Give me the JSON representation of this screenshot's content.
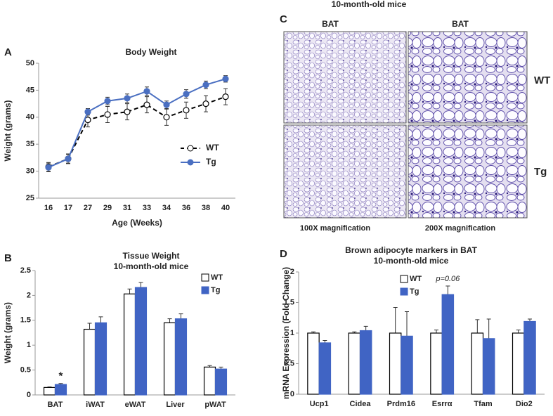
{
  "chart_data": [
    {
      "type": "line",
      "panel": "A",
      "title": "Body Weight",
      "x_label": "Age (Weeks)",
      "y_label": "Weight (grams)",
      "categories": [
        "16",
        "17",
        "27",
        "29",
        "31",
        "33",
        "34",
        "36",
        "38",
        "40"
      ],
      "ylim": [
        25,
        50
      ],
      "yticks": [
        25,
        30,
        35,
        40,
        45,
        50
      ],
      "legend": "center right",
      "series": [
        {
          "name": "WT",
          "color": "#000000",
          "values": [
            30.8,
            32.3,
            39.5,
            40.5,
            41,
            42.3,
            40,
            41.3,
            42.5,
            43.8
          ],
          "errors": [
            0.8,
            0.9,
            1.3,
            1.5,
            1.5,
            1.5,
            1.5,
            1.5,
            1.5,
            1.5
          ]
        },
        {
          "name": "Tg",
          "color": "#4a6fc1",
          "values": [
            30.7,
            32.3,
            41,
            43,
            43.5,
            44.8,
            42.3,
            44.3,
            46,
            47.1
          ],
          "errors": [
            0.8,
            0.8,
            0.6,
            0.7,
            0.8,
            0.8,
            0.7,
            0.8,
            0.7,
            0.6
          ]
        }
      ]
    },
    {
      "type": "bar",
      "panel": "B",
      "title": [
        "Tissue Weight",
        "10-month-old mice"
      ],
      "y_label": "Weight (grams)",
      "categories": [
        "BAT",
        "iWAT",
        "eWAT",
        "Liver",
        "pWAT"
      ],
      "ylim": [
        0,
        2.5
      ],
      "yticks": [
        0,
        0.5,
        1,
        1.5,
        2,
        2.5
      ],
      "legend": "upper right",
      "series": [
        {
          "name": "WT",
          "color": "#ffffff",
          "values": [
            0.15,
            1.32,
            2.03,
            1.45,
            0.56
          ],
          "errors": [
            0.01,
            0.12,
            0.1,
            0.08,
            0.03
          ]
        },
        {
          "name": "Tg",
          "color": "#4064c4",
          "values": [
            0.21,
            1.45,
            2.16,
            1.53,
            0.52
          ],
          "errors": [
            0.02,
            0.12,
            0.1,
            0.1,
            0.04
          ]
        }
      ],
      "annotations": [
        {
          "text": "*",
          "category": "BAT"
        }
      ]
    },
    {
      "type": "bar",
      "panel": "D",
      "title": [
        "Brown adipocyte markers in BAT",
        "10-month-old mice"
      ],
      "y_label": "mRNA Expression (Fold Change)",
      "categories": [
        "Ucp1",
        "Cidea",
        "Prdm16",
        "Esrrα",
        "Tfam",
        "Dio2"
      ],
      "ylim": [
        0,
        2
      ],
      "yticks": [
        0,
        0.5,
        1,
        1.5,
        2
      ],
      "legend": "upper center",
      "series": [
        {
          "name": "WT",
          "color": "#ffffff",
          "values": [
            1,
            1,
            1,
            1,
            1,
            1
          ],
          "errors": [
            0.02,
            0.02,
            0.42,
            0.05,
            0.22,
            0.05
          ]
        },
        {
          "name": "Tg",
          "color": "#4064c4",
          "values": [
            0.84,
            1.04,
            0.95,
            1.63,
            0.91,
            1.19
          ],
          "errors": [
            0.04,
            0.07,
            0.4,
            0.14,
            0.32,
            0.04
          ]
        }
      ],
      "annotations": [
        {
          "text": "p=0.06",
          "category": "Esrrα"
        }
      ]
    }
  ],
  "panel_c": {
    "panel": "C",
    "title": "10-month-old mice",
    "columns": [
      "BAT",
      "BAT"
    ],
    "rows": [
      "WT",
      "Tg"
    ],
    "magnifications": [
      "100X magnification",
      "200X magnification"
    ]
  }
}
